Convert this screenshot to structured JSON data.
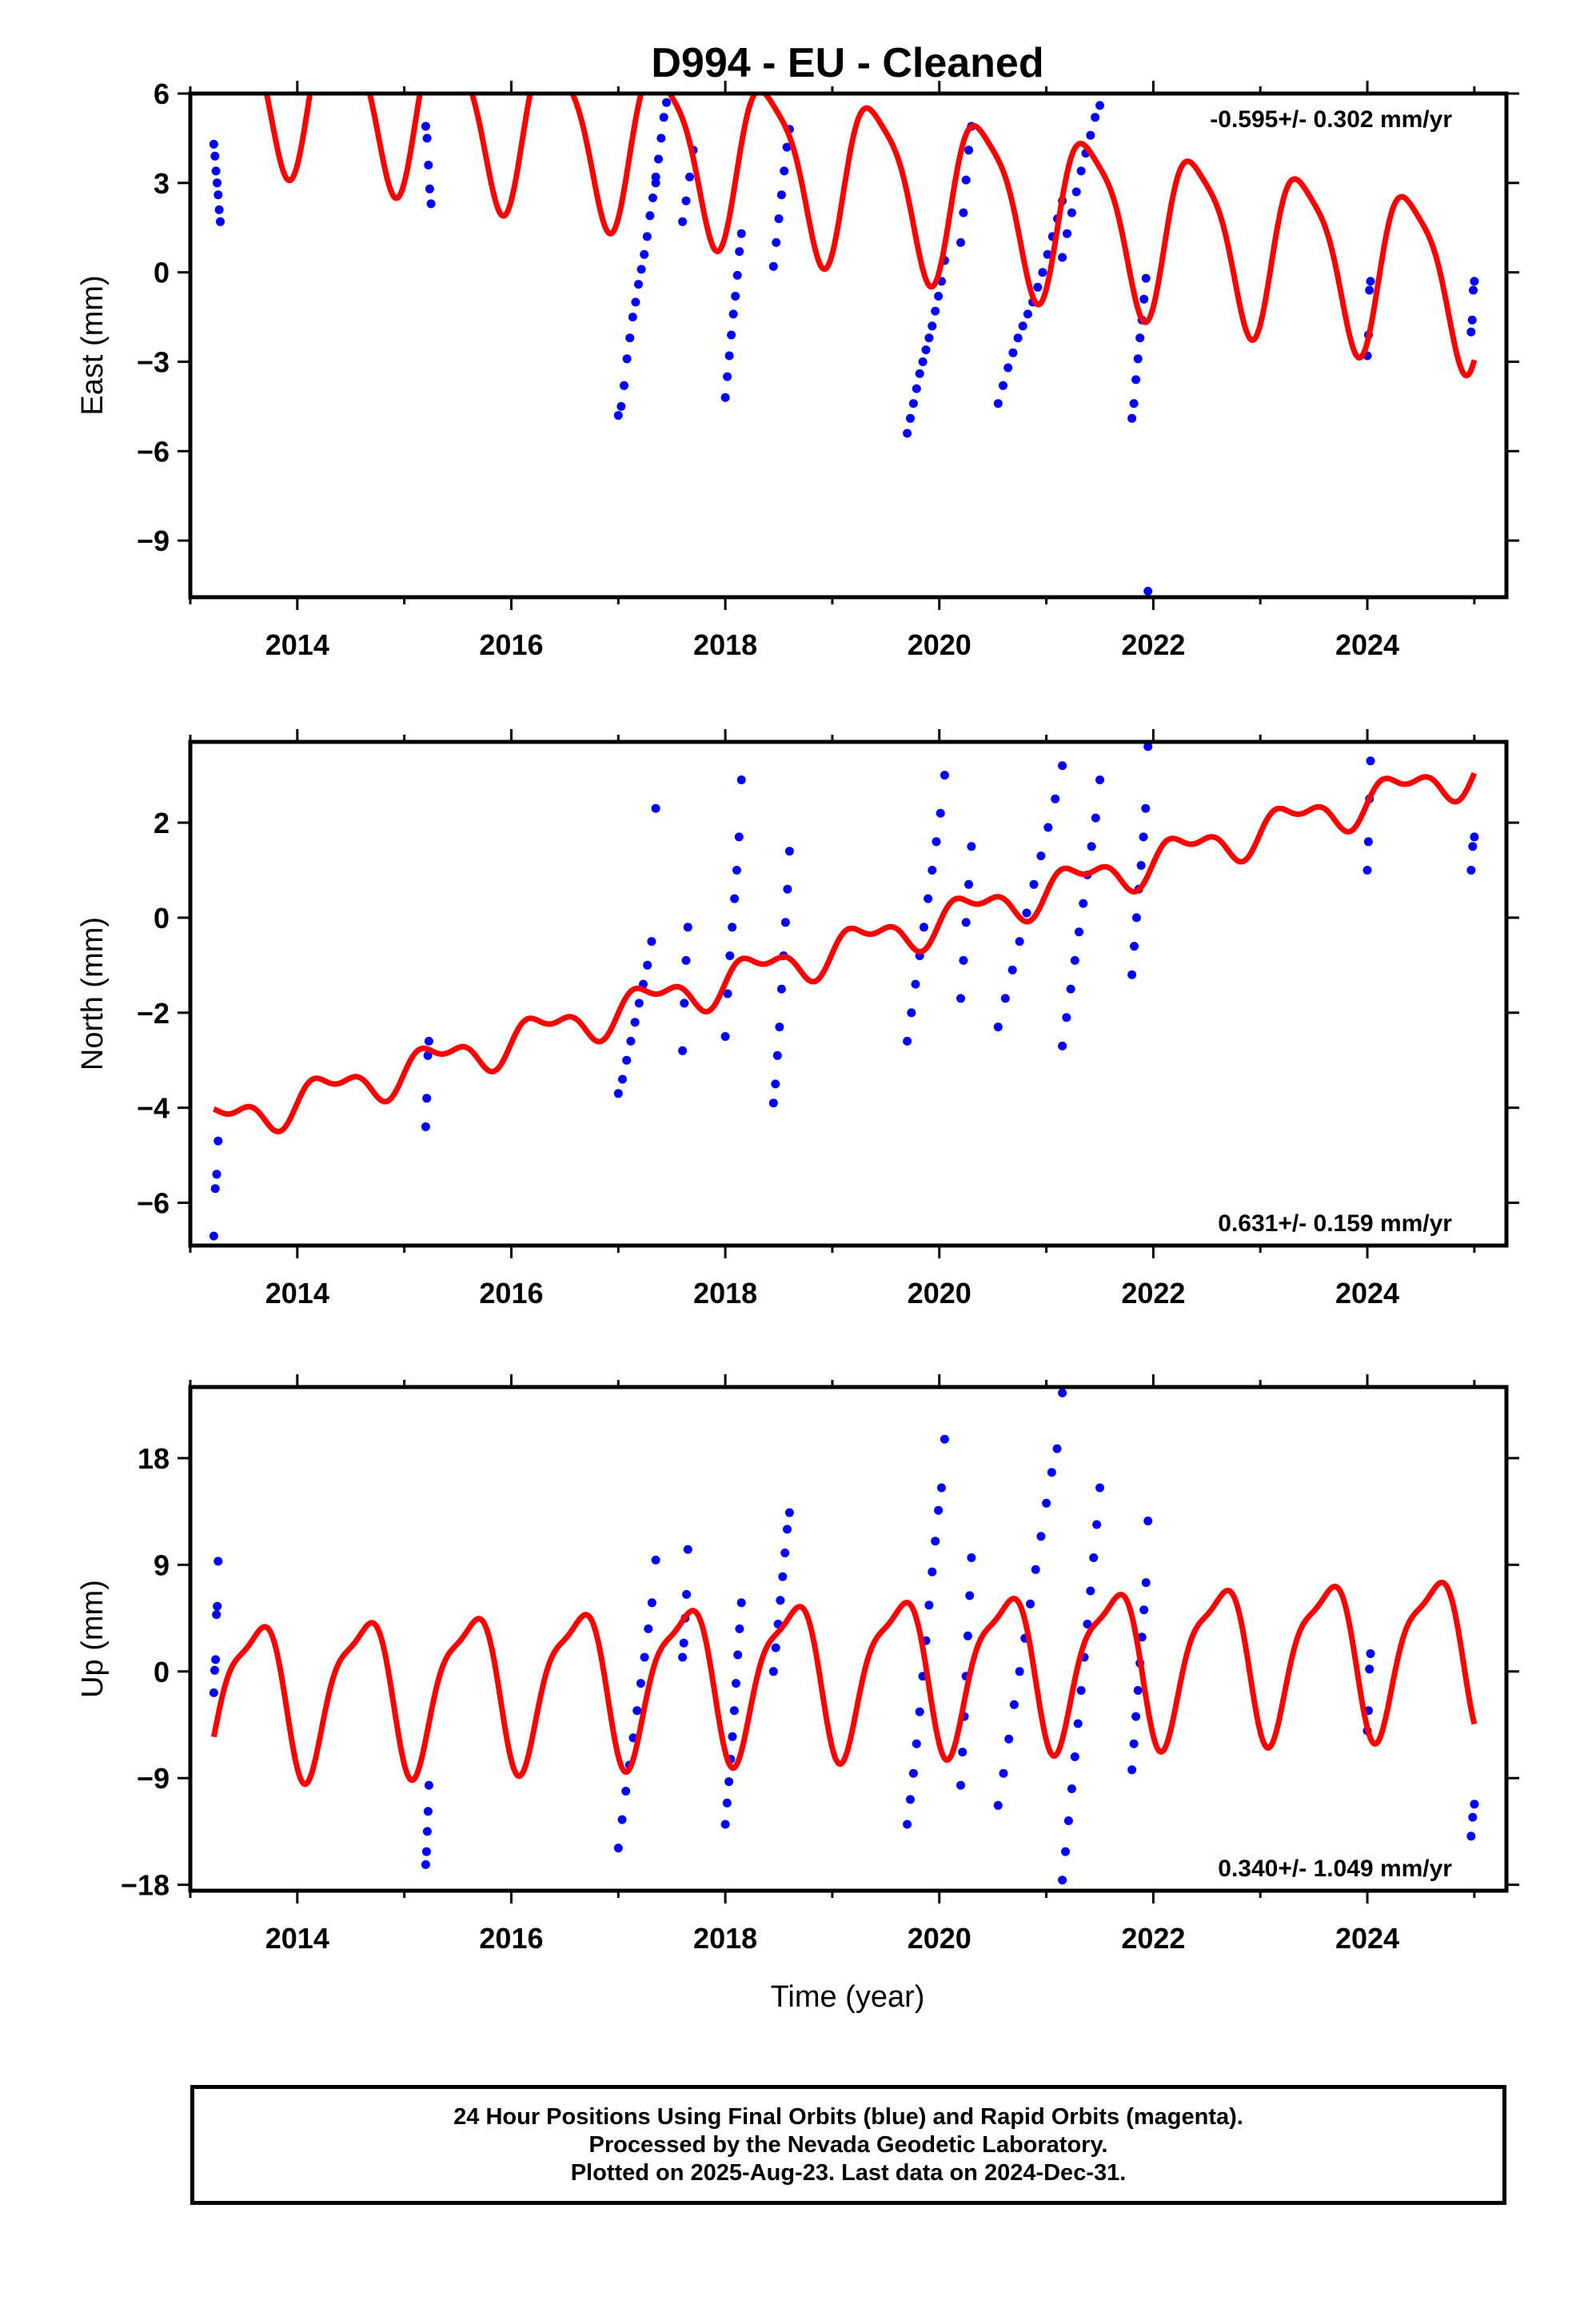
{
  "title": "D994  - EU - Cleaned",
  "xlabel": "Time (year)",
  "footer": {
    "line1": "24 Hour Positions Using Final Orbits (blue) and Rapid Orbits (magenta).",
    "line2": "Processed by the Nevada Geodetic Laboratory.",
    "line3": "Plotted on 2025-Aug-23. Last data on 2024-Dec-31."
  },
  "colors": {
    "data_points": "#0000ff",
    "model_curve": "#ff0000",
    "frame": "#000000"
  },
  "chart_data": [
    {
      "type": "scatter",
      "component": "east",
      "ylabel": "East (mm)",
      "rate": "-0.595+/- 0.302 mm/yr",
      "rate_position": "top-right",
      "xlim": [
        2013.0,
        2025.3
      ],
      "ylim": [
        -10.9,
        6
      ],
      "xticks": [
        2014,
        2016,
        2018,
        2020,
        2022,
        2024
      ],
      "yticks": [
        6,
        3,
        0,
        -3,
        -6,
        -9
      ],
      "ytick_labels": [
        "6",
        "3",
        "0",
        "−3",
        "−6",
        "−9"
      ],
      "model": {
        "offset": 3.3,
        "rate": -0.595,
        "annual_amp": 2.7,
        "semiannual_amp": 0.6,
        "annual_phase_yr": 0.4,
        "semiannual_phase_yr": 0.2,
        "t_ref": 2019
      },
      "data_segments": [
        {
          "t0": 2013.22,
          "t1": 2013.28,
          "ys": [
            4.3,
            3.9,
            3.4,
            3.0,
            2.6,
            2.1,
            1.7
          ]
        },
        {
          "t0": 2015.2,
          "t1": 2015.25,
          "ys": [
            4.9,
            4.5,
            3.6,
            2.8,
            2.3
          ]
        },
        {
          "t0": 2017.0,
          "t1": 2017.35,
          "ys": [
            -4.8,
            -4.5,
            -3.8,
            -2.9,
            -2.2,
            -1.5,
            -1.0,
            -0.4,
            0.1,
            0.6,
            1.2,
            1.9,
            2.5,
            3.0
          ]
        },
        {
          "t0": 2017.35,
          "t1": 2017.45,
          "ys": [
            3.2,
            3.8,
            4.5,
            5.2,
            5.7
          ]
        },
        {
          "t0": 2017.6,
          "t1": 2017.7,
          "ys": [
            1.7,
            2.4,
            3.2,
            4.1
          ]
        },
        {
          "t0": 2018.0,
          "t1": 2018.15,
          "ys": [
            -4.2,
            -3.5,
            -2.8,
            -2.1,
            -1.4,
            -0.8,
            -0.1,
            0.7,
            1.3
          ]
        },
        {
          "t0": 2018.45,
          "t1": 2018.6,
          "ys": [
            0.2,
            1.0,
            1.8,
            2.6,
            3.4,
            4.2,
            4.8
          ]
        },
        {
          "t0": 2019.7,
          "t1": 2020.05,
          "ys": [
            -5.4,
            -4.9,
            -4.4,
            -3.9,
            -3.4,
            -3.0,
            -2.6,
            -2.2,
            -1.8,
            -1.3,
            -0.8,
            -0.3,
            0.4
          ]
        },
        {
          "t0": 2020.2,
          "t1": 2020.3,
          "ys": [
            1.0,
            2.0,
            3.1,
            4.1,
            4.9
          ]
        },
        {
          "t0": 2020.55,
          "t1": 2021.15,
          "ys": [
            -4.4,
            -3.8,
            -3.2,
            -2.7,
            -2.2,
            -1.8,
            -1.4,
            -1.0,
            -0.5,
            0.0,
            0.6,
            1.2,
            1.8,
            2.4
          ]
        },
        {
          "t0": 2021.15,
          "t1": 2021.5,
          "ys": [
            0.5,
            1.3,
            2.0,
            2.7,
            3.4,
            4.0,
            4.6,
            5.2,
            5.6
          ]
        },
        {
          "t0": 2021.8,
          "t1": 2021.95,
          "ys": [
            -4.9,
            -4.4,
            -3.6,
            -2.9,
            -2.2,
            -1.6,
            -0.9,
            -0.2,
            -10.7
          ]
        },
        {
          "t0": 2024.0,
          "t1": 2024.03,
          "ys": [
            -2.8,
            -2.1,
            -0.6,
            -0.3
          ]
        },
        {
          "t0": 2024.97,
          "t1": 2025.0,
          "ys": [
            -2.0,
            -1.6,
            -0.6,
            -0.3
          ]
        }
      ]
    },
    {
      "type": "scatter",
      "component": "north",
      "ylabel": "North (mm)",
      "rate": "0.631+/- 0.159 mm/yr",
      "rate_position": "bottom-right",
      "xlim": [
        2013.0,
        2025.3
      ],
      "ylim": [
        -6.9,
        3.7
      ],
      "xticks": [
        2014,
        2016,
        2018,
        2020,
        2022,
        2024
      ],
      "yticks": [
        2,
        0,
        -2,
        -4,
        -6
      ],
      "ytick_labels": [
        "2",
        "0",
        "−2",
        "−4",
        "−6"
      ],
      "model": {
        "offset": -0.7,
        "rate": 0.631,
        "annual_amp": 0.35,
        "semiannual_amp": 0.2,
        "annual_phase_yr": 0.3,
        "semiannual_phase_yr": 0.1,
        "t_ref": 2019
      },
      "data_segments": [
        {
          "t0": 2013.22,
          "t1": 2013.26,
          "ys": [
            -6.7,
            -5.7,
            -5.4,
            -4.7
          ]
        },
        {
          "t0": 2015.2,
          "t1": 2015.23,
          "ys": [
            -4.4,
            -3.8,
            -2.9,
            -2.6
          ]
        },
        {
          "t0": 2017.0,
          "t1": 2017.35,
          "ys": [
            -3.7,
            -3.4,
            -3.0,
            -2.6,
            -2.2,
            -1.8,
            -1.4,
            -1.0,
            -0.5,
            2.3
          ]
        },
        {
          "t0": 2017.6,
          "t1": 2017.65,
          "ys": [
            -2.8,
            -1.8,
            -0.9,
            -0.2
          ]
        },
        {
          "t0": 2018.0,
          "t1": 2018.15,
          "ys": [
            -2.5,
            -1.6,
            -0.8,
            -0.2,
            0.4,
            1.0,
            1.7,
            2.9
          ]
        },
        {
          "t0": 2018.45,
          "t1": 2018.6,
          "ys": [
            -3.9,
            -3.5,
            -2.9,
            -2.3,
            -1.5,
            -0.8,
            -0.1,
            0.6,
            1.4
          ]
        },
        {
          "t0": 2019.7,
          "t1": 2020.05,
          "ys": [
            -2.6,
            -2.0,
            -1.4,
            -0.8,
            -0.2,
            0.4,
            1.0,
            1.6,
            2.2,
            3.0
          ]
        },
        {
          "t0": 2020.2,
          "t1": 2020.3,
          "ys": [
            -1.7,
            -0.9,
            -0.1,
            0.7,
            1.5
          ]
        },
        {
          "t0": 2020.55,
          "t1": 2021.15,
          "ys": [
            -2.3,
            -1.7,
            -1.1,
            -0.5,
            0.1,
            0.7,
            1.3,
            1.9,
            2.5,
            3.2
          ]
        },
        {
          "t0": 2021.15,
          "t1": 2021.5,
          "ys": [
            -2.7,
            -2.1,
            -1.5,
            -0.9,
            -0.3,
            0.3,
            0.9,
            1.5,
            2.1,
            2.9
          ]
        },
        {
          "t0": 2021.8,
          "t1": 2021.95,
          "ys": [
            -1.2,
            -0.6,
            0.0,
            0.6,
            1.1,
            1.7,
            2.3,
            3.6
          ]
        },
        {
          "t0": 2024.0,
          "t1": 2024.03,
          "ys": [
            1.0,
            1.6,
            2.5,
            3.3
          ]
        },
        {
          "t0": 2024.97,
          "t1": 2025.0,
          "ys": [
            1.0,
            1.5,
            1.7
          ]
        }
      ]
    },
    {
      "type": "scatter",
      "component": "up",
      "ylabel": "Up (mm)",
      "rate": "0.340+/- 1.049 mm/yr",
      "rate_position": "bottom-right",
      "xlim": [
        2013.0,
        2025.3
      ],
      "ylim": [
        -18.5,
        24
      ],
      "xticks": [
        2014,
        2016,
        2018,
        2020,
        2022,
        2024
      ],
      "yticks": [
        18,
        9,
        0,
        -9,
        -18
      ],
      "ytick_labels": [
        "18",
        "9",
        "0",
        "−9",
        "−18"
      ],
      "model": {
        "offset": 0.0,
        "rate": 0.34,
        "annual_amp": 6.2,
        "semiannual_amp": 1.8,
        "annual_phase_yr": 0.6,
        "semiannual_phase_yr": 0.3,
        "t_ref": 2019
      },
      "data_segments": [
        {
          "t0": 2013.22,
          "t1": 2013.26,
          "ys": [
            -1.8,
            0.1,
            1.0,
            4.8,
            5.5,
            9.3
          ]
        },
        {
          "t0": 2015.2,
          "t1": 2015.23,
          "ys": [
            -16.3,
            -15.2,
            -13.5,
            -11.8,
            -9.6
          ]
        },
        {
          "t0": 2017.0,
          "t1": 2017.35,
          "ys": [
            -14.9,
            -12.5,
            -10.1,
            -7.9,
            -5.6,
            -3.3,
            -1.0,
            1.2,
            3.6,
            5.8,
            9.4
          ]
        },
        {
          "t0": 2017.6,
          "t1": 2017.65,
          "ys": [
            1.2,
            2.4,
            4.5,
            6.5,
            10.3
          ]
        },
        {
          "t0": 2018.0,
          "t1": 2018.15,
          "ys": [
            -12.9,
            -11.1,
            -9.3,
            -7.4,
            -5.5,
            -3.3,
            -1.0,
            1.4,
            3.6,
            5.8
          ]
        },
        {
          "t0": 2018.45,
          "t1": 2018.6,
          "ys": [
            0.0,
            2.0,
            4.0,
            6.0,
            8.0,
            10.0,
            12.0,
            13.4
          ]
        },
        {
          "t0": 2019.7,
          "t1": 2020.05,
          "ys": [
            -12.9,
            -10.8,
            -8.6,
            -6.1,
            -3.4,
            -0.4,
            2.6,
            5.6,
            8.4,
            11.0,
            13.6,
            15.5,
            19.6
          ]
        },
        {
          "t0": 2020.2,
          "t1": 2020.3,
          "ys": [
            -9.6,
            -6.8,
            -3.8,
            -0.4,
            3.0,
            6.4,
            9.6
          ]
        },
        {
          "t0": 2020.55,
          "t1": 2021.15,
          "ys": [
            -11.3,
            -8.6,
            -5.7,
            -2.8,
            0.0,
            2.8,
            5.7,
            8.6,
            11.4,
            14.2,
            16.8,
            18.8,
            23.5
          ]
        },
        {
          "t0": 2021.15,
          "t1": 2021.5,
          "ys": [
            -17.6,
            -15.2,
            -12.6,
            -9.9,
            -7.2,
            -4.4,
            -1.6,
            1.2,
            4.0,
            6.8,
            9.6,
            12.4,
            15.5
          ]
        },
        {
          "t0": 2021.8,
          "t1": 2021.95,
          "ys": [
            -8.3,
            -6.1,
            -3.8,
            -1.6,
            0.7,
            2.9,
            5.2,
            7.5,
            12.7
          ]
        },
        {
          "t0": 2024.0,
          "t1": 2024.03,
          "ys": [
            -5.0,
            -3.3,
            0.2,
            1.5
          ]
        },
        {
          "t0": 2024.97,
          "t1": 2025.0,
          "ys": [
            -13.9,
            -12.3,
            -11.2
          ]
        }
      ]
    }
  ]
}
